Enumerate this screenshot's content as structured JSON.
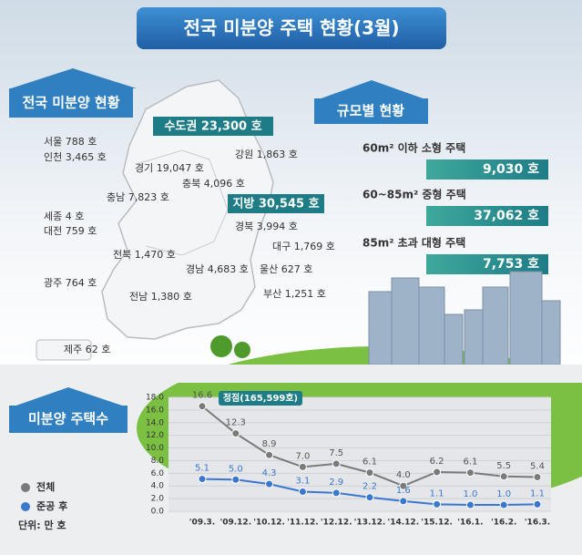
{
  "header": {
    "title": "전국 미분양 주택 현황(3월)"
  },
  "regional": {
    "heading": "전국 미분양 현황",
    "capital_total": "수도권 23,300 호",
    "local_total": "지방 30,545 호",
    "regions": [
      "서울 788 호",
      "인천 3,465 호",
      "경기 19,047 호",
      "강원 1,863 호",
      "충북 4,096 호",
      "충남 7,823 호",
      "세종 4 호",
      "대전 759 호",
      "전북 1,470 호",
      "경북 3,994 호",
      "대구 1,769 호",
      "경남 4,683 호",
      "울산 627 호",
      "광주 764 호",
      "전남 1,380 호",
      "부산 1,251 호",
      "제주 62 호"
    ]
  },
  "by_size": {
    "heading": "규모별 현황",
    "items": [
      {
        "label": "60m² 이하 소형 주택",
        "value": "9,030 호"
      },
      {
        "label": "60~85m² 중형 주택",
        "value": "37,062 호"
      },
      {
        "label": "85m² 초과 대형 주택",
        "value": "7,753 호"
      }
    ]
  },
  "chart_data": {
    "type": "line",
    "title": "미분양 주택수",
    "unit": "단위: 만 호",
    "annotation": "정점(165,599호)",
    "categories": [
      "'09.3.",
      "'09.12.",
      "'10.12.",
      "'11.12.",
      "'12.12.",
      "'13.12.",
      "'14.12.",
      "'15.12.",
      "'16.1.",
      "'16.2.",
      "'16.3."
    ],
    "series": [
      {
        "name": "전체",
        "color": "#7a7a7a",
        "values": [
          16.6,
          12.3,
          8.9,
          7.0,
          7.5,
          6.1,
          4.0,
          6.2,
          6.1,
          5.5,
          5.4
        ],
        "value_labels": [
          "16.6",
          "12.3",
          "8.9",
          "7.0",
          "7.5",
          "6.1",
          "4.0",
          "6.2",
          "6.1",
          "5.5",
          "5.4"
        ]
      },
      {
        "name": "준공 후",
        "color": "#3a78d0",
        "values": [
          5.1,
          5.0,
          4.3,
          3.1,
          2.9,
          2.2,
          1.6,
          1.1,
          1.0,
          1.0,
          1.1
        ],
        "value_labels": [
          "5.1",
          "5.0",
          "4.3",
          "3.1",
          "2.9",
          "2.2",
          "1.6",
          "1.1",
          "1.0",
          "1.0",
          "1.1"
        ]
      }
    ],
    "ylim": [
      0,
      18
    ],
    "yticks": [
      {
        "value": 0,
        "label": "0.0"
      },
      {
        "value": 2,
        "label": "2.0"
      },
      {
        "value": 4,
        "label": "4.0"
      },
      {
        "value": 6,
        "label": "6.0"
      },
      {
        "value": 8,
        "label": "8.0"
      },
      {
        "value": 10,
        "label": "10.0"
      },
      {
        "value": 12,
        "label": "12.0"
      },
      {
        "value": 14,
        "label": "14.0"
      },
      {
        "value": 16,
        "label": "16.0"
      },
      {
        "value": 18,
        "label": "18.0"
      }
    ],
    "grid": true
  }
}
